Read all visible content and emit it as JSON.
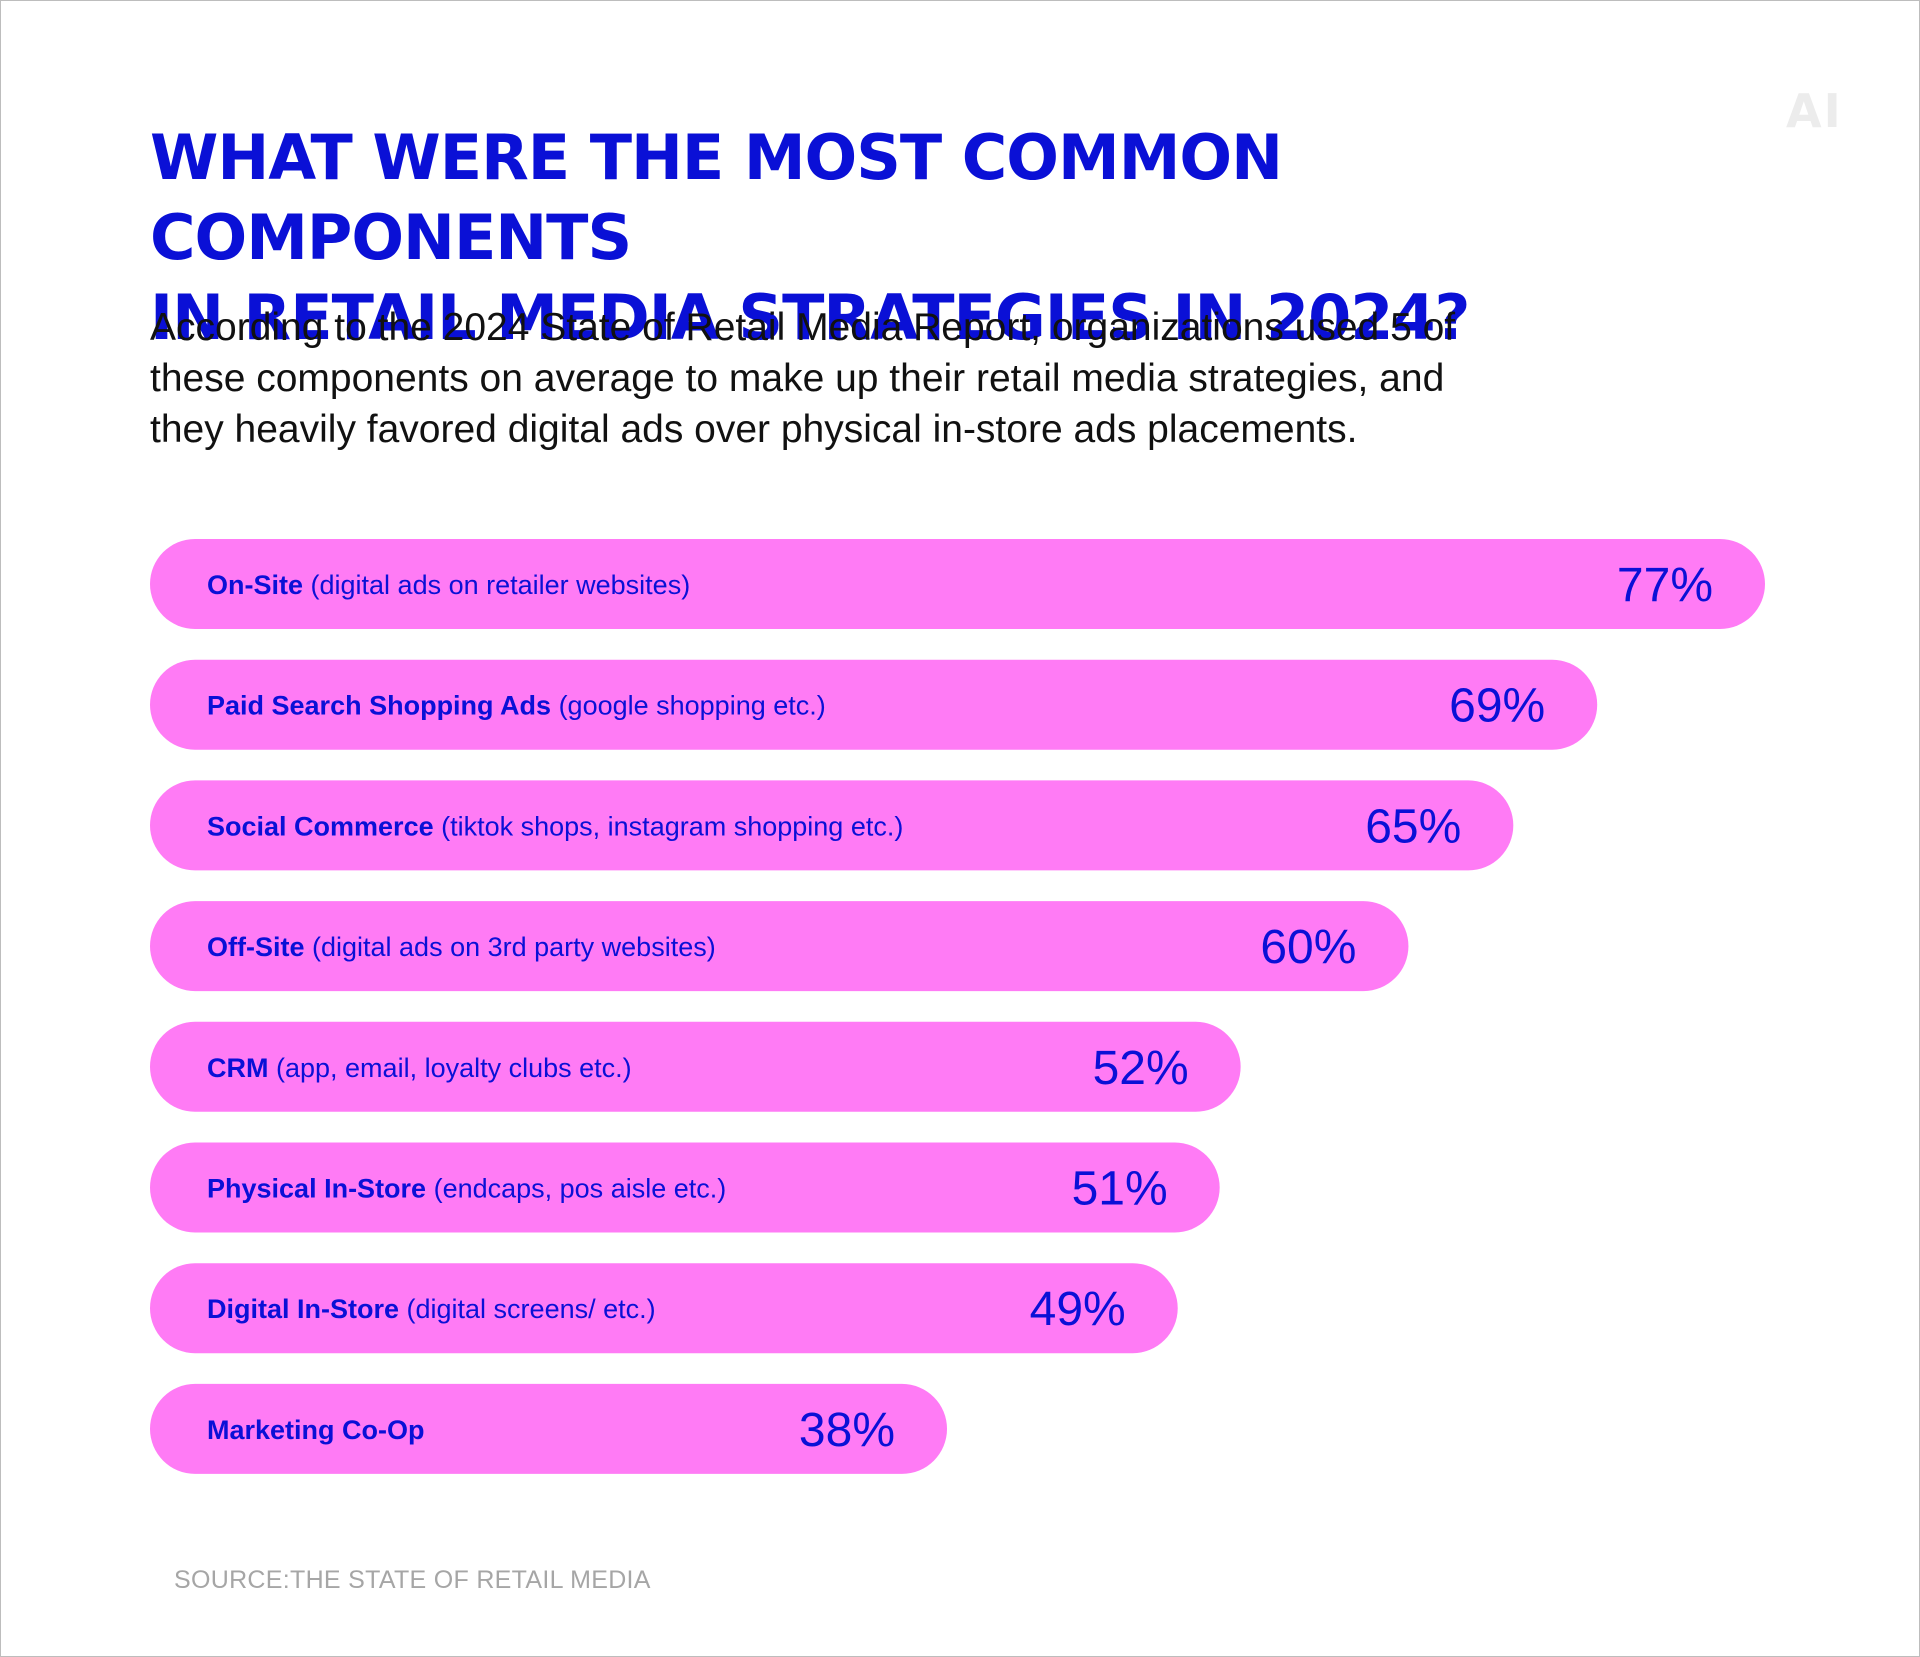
{
  "logo": "AI",
  "title_lines": [
    "WHAT WERE THE MOST COMMON COMPONENTS",
    "IN RETAIL MEDIA STRATEGIES IN 2024?"
  ],
  "subtitle_lines": [
    "According to the 2024 State of Retail Media Report, organizations used 5 of",
    "these components on average to make up their retail media strategies, and",
    "they heavily favored digital ads over physical in-store ads placements."
  ],
  "source": "SOURCE:THE STATE OF RETAIL MEDIA",
  "colors": {
    "bar": "#ff7bf5",
    "text": "#0a10d6"
  },
  "chart_data": {
    "type": "bar",
    "orientation": "horizontal",
    "title": "WHAT WERE THE MOST COMMON COMPONENTS IN RETAIL MEDIA STRATEGIES IN 2024?",
    "value_unit": "%",
    "categories": [
      {
        "label": "On-Site",
        "detail": "(digital ads on retailer websites)"
      },
      {
        "label": "Paid Search Shopping Ads",
        "detail": "(google shopping etc.)"
      },
      {
        "label": "Social Commerce",
        "detail": "(tiktok shops, instagram shopping etc.)"
      },
      {
        "label": "Off-Site",
        "detail": "(digital ads on 3rd party websites)"
      },
      {
        "label": "CRM",
        "detail": "(app, email, loyalty clubs etc.)"
      },
      {
        "label": "Physical In-Store",
        "detail": "(endcaps, pos aisle etc.)"
      },
      {
        "label": "Digital In-Store",
        "detail": "(digital screens/ etc.)"
      },
      {
        "label": "Marketing Co-Op",
        "detail": ""
      }
    ],
    "values": [
      77,
      69,
      65,
      60,
      52,
      51,
      49,
      38
    ],
    "value_labels": [
      "77%",
      "69%",
      "65%",
      "60%",
      "52%",
      "51%",
      "49%",
      "38%"
    ]
  }
}
